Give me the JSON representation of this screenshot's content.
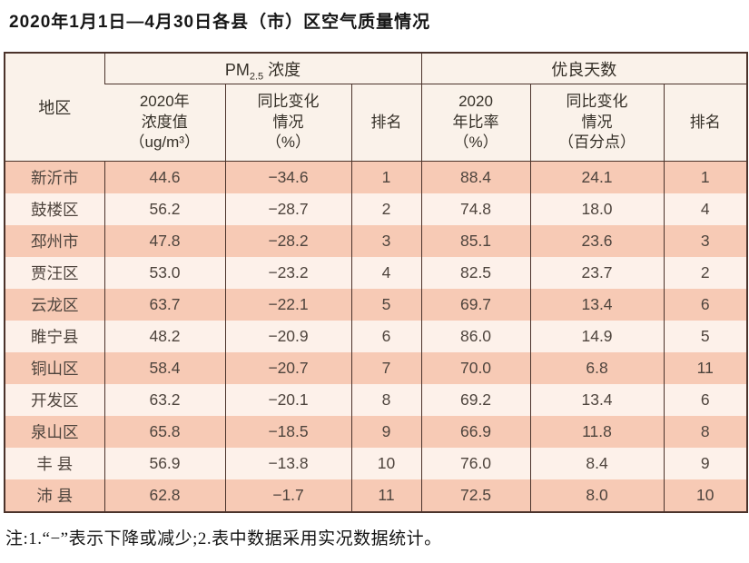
{
  "title": "2020年1月1日—4月30日各县（市）区空气质量情况",
  "note": "注:1.“−”表示下降或减少;2.表中数据采用实况数据统计。",
  "colors": {
    "row_stripe_dark": "#f7cab5",
    "row_stripe_light": "#fdf1ea",
    "header_background": "#faf2ea",
    "table_border": "#4b332b",
    "text": "#4e443d"
  },
  "chart_data": {
    "type": "table",
    "title": "2020年1月1日—4月30日各县（市）区空气质量情况",
    "header": {
      "region": "地区",
      "group_pm": {
        "prefix": "PM",
        "sub": "2.5",
        "rest": "浓度"
      },
      "group_days": "优良天数",
      "sub_columns": [
        "2020年\n浓度值\n（ug/m³）",
        "同比变化\n情况\n（%）",
        "排名",
        "2020\n年比率\n（%）",
        "同比变化\n情况\n（百分点）",
        "排名"
      ]
    },
    "rows": [
      [
        "新沂市",
        "44.6",
        "−34.6",
        "1",
        "88.4",
        "24.1",
        "1"
      ],
      [
        "鼓楼区",
        "56.2",
        "−28.7",
        "2",
        "74.8",
        "18.0",
        "4"
      ],
      [
        "邳州市",
        "47.8",
        "−28.2",
        "3",
        "85.1",
        "23.6",
        "3"
      ],
      [
        "贾汪区",
        "53.0",
        "−23.2",
        "4",
        "82.5",
        "23.7",
        "2"
      ],
      [
        "云龙区",
        "63.7",
        "−22.1",
        "5",
        "69.7",
        "13.4",
        "6"
      ],
      [
        "睢宁县",
        "48.2",
        "−20.9",
        "6",
        "86.0",
        "14.9",
        "5"
      ],
      [
        "铜山区",
        "58.4",
        "−20.7",
        "7",
        "70.0",
        "6.8",
        "11"
      ],
      [
        "开发区",
        "63.2",
        "−20.1",
        "8",
        "69.2",
        "13.4",
        "6"
      ],
      [
        "泉山区",
        "65.8",
        "−18.5",
        "9",
        "66.9",
        "11.8",
        "8"
      ],
      [
        "丰 县",
        "56.9",
        "−13.8",
        "10",
        "76.0",
        "8.4",
        "9"
      ],
      [
        "沛 县",
        "62.8",
        "−1.7",
        "11",
        "72.5",
        "8.0",
        "10"
      ]
    ]
  }
}
